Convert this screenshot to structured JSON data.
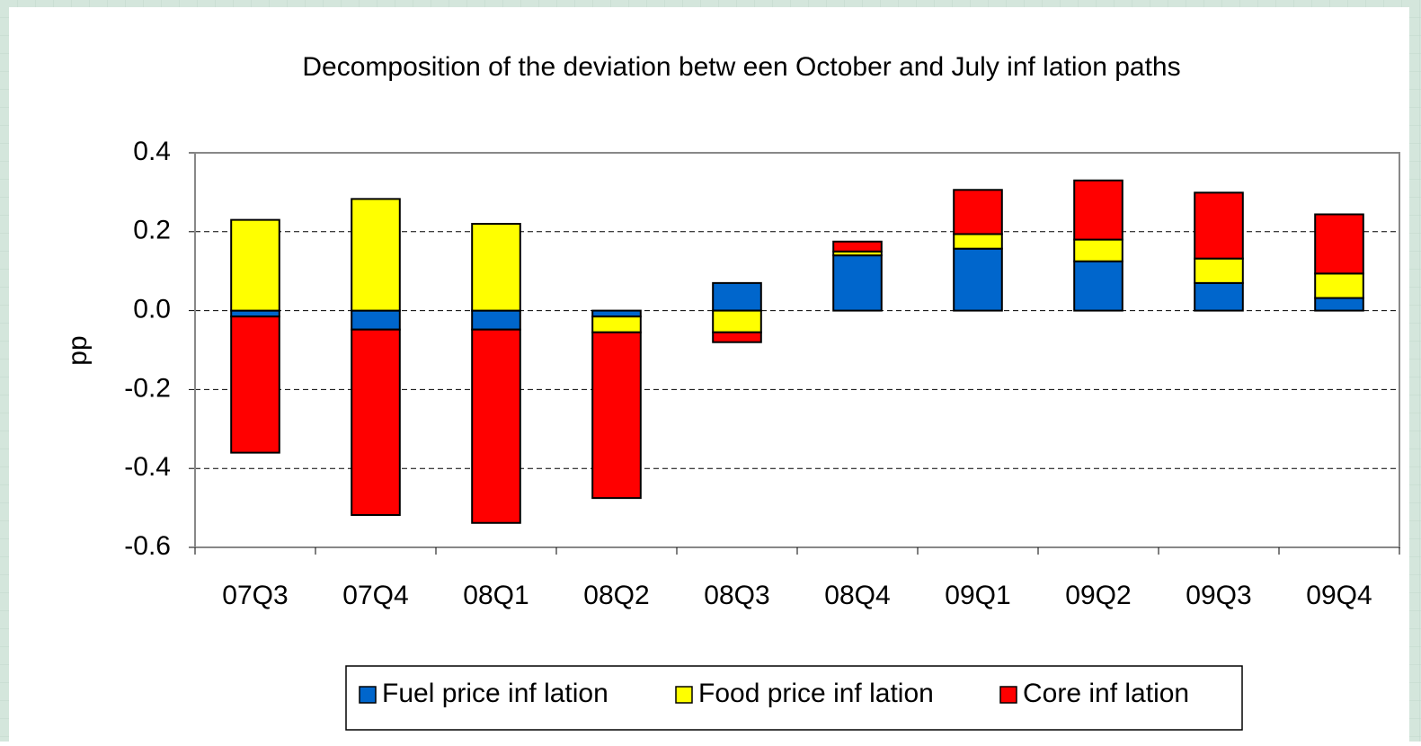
{
  "chart_data": {
    "type": "stacked-bar",
    "title": "Decomposition of the deviation betw een October and July inf lation paths",
    "y_label": "pp",
    "categories": [
      "07Q3",
      "07Q4",
      "08Q1",
      "08Q2",
      "08Q3",
      "08Q4",
      "09Q1",
      "09Q2",
      "09Q3",
      "09Q4"
    ],
    "series": [
      {
        "name": "Fuel price inf lation",
        "color": "#0066cc",
        "values": [
          -0.015,
          -0.048,
          -0.048,
          -0.015,
          0.07,
          0.14,
          0.157,
          0.125,
          0.07,
          0.032
        ]
      },
      {
        "name": "Food price inf lation",
        "color": "#ffff00",
        "values": [
          0.23,
          0.283,
          0.22,
          -0.04,
          -0.055,
          0.01,
          0.037,
          0.055,
          0.062,
          0.062
        ]
      },
      {
        "name": "Core inf lation",
        "color": "#ff0000",
        "values": [
          -0.345,
          -0.47,
          -0.49,
          -0.42,
          -0.025,
          0.025,
          0.112,
          0.15,
          0.167,
          0.15
        ]
      }
    ],
    "ylim": [
      -0.6,
      0.4
    ],
    "yticks": [
      -0.6,
      -0.4,
      -0.2,
      {
        "value": 0,
        "label": "0.0"
      },
      0.2,
      0.4
    ],
    "grid": true
  }
}
